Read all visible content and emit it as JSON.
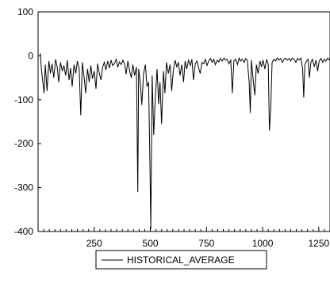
{
  "chart_data": {
    "type": "line",
    "title": "",
    "xlabel": "",
    "ylabel": "",
    "xlim": [
      0,
      1300
    ],
    "ylim": [
      -400,
      100
    ],
    "x_ticks": [
      250,
      500,
      750,
      1000,
      1250
    ],
    "y_ticks": [
      100,
      0,
      -100,
      -200,
      -300,
      -400
    ],
    "grid": false,
    "legend": "bottom-center",
    "series": [
      {
        "name": "HISTORICAL_AVERAGE",
        "color": "#000000",
        "points": [
          [
            10,
            6
          ],
          [
            15,
            -30
          ],
          [
            20,
            -55
          ],
          [
            27,
            -85
          ],
          [
            32,
            -20
          ],
          [
            40,
            -80
          ],
          [
            48,
            -12
          ],
          [
            55,
            -40
          ],
          [
            62,
            -18
          ],
          [
            70,
            -50
          ],
          [
            78,
            -8
          ],
          [
            85,
            -25
          ],
          [
            92,
            -60
          ],
          [
            100,
            -15
          ],
          [
            108,
            -35
          ],
          [
            115,
            -22
          ],
          [
            123,
            -45
          ],
          [
            130,
            -10
          ],
          [
            138,
            -55
          ],
          [
            145,
            -28
          ],
          [
            152,
            -70
          ],
          [
            160,
            -20
          ],
          [
            168,
            -40
          ],
          [
            175,
            -12
          ],
          [
            183,
            -30
          ],
          [
            190,
            -135
          ],
          [
            197,
            -15
          ],
          [
            205,
            -48
          ],
          [
            212,
            -85
          ],
          [
            220,
            -30
          ],
          [
            228,
            -60
          ],
          [
            235,
            -22
          ],
          [
            242,
            -52
          ],
          [
            250,
            -35
          ],
          [
            258,
            -75
          ],
          [
            265,
            -18
          ],
          [
            272,
            -38
          ],
          [
            280,
            -55
          ],
          [
            288,
            -25
          ],
          [
            295,
            -15
          ],
          [
            302,
            -32
          ],
          [
            310,
            -12
          ],
          [
            318,
            -28
          ],
          [
            325,
            -10
          ],
          [
            332,
            -22
          ],
          [
            340,
            -18
          ],
          [
            348,
            -8
          ],
          [
            355,
            -26
          ],
          [
            362,
            -14
          ],
          [
            370,
            -20
          ],
          [
            378,
            -10
          ],
          [
            385,
            -18
          ],
          [
            392,
            -42
          ],
          [
            400,
            -12
          ],
          [
            408,
            -35
          ],
          [
            415,
            -50
          ],
          [
            422,
            -20
          ],
          [
            430,
            -45
          ],
          [
            438,
            -25
          ],
          [
            444,
            -310
          ],
          [
            448,
            -30
          ],
          [
            455,
            -60
          ],
          [
            462,
            -112
          ],
          [
            470,
            -40
          ],
          [
            478,
            -20
          ],
          [
            485,
            -70
          ],
          [
            492,
            -60
          ],
          [
            498,
            -245
          ],
          [
            502,
            -395
          ],
          [
            508,
            -45
          ],
          [
            515,
            -180
          ],
          [
            522,
            -95
          ],
          [
            530,
            -30
          ],
          [
            537,
            -110
          ],
          [
            543,
            -60
          ],
          [
            550,
            -155
          ],
          [
            558,
            -35
          ],
          [
            565,
            -85
          ],
          [
            572,
            -15
          ],
          [
            580,
            -40
          ],
          [
            588,
            -20
          ],
          [
            595,
            -80
          ],
          [
            602,
            -35
          ],
          [
            610,
            -10
          ],
          [
            618,
            -25
          ],
          [
            625,
            -15
          ],
          [
            632,
            -45
          ],
          [
            640,
            -20
          ],
          [
            648,
            -60
          ],
          [
            655,
            -12
          ],
          [
            662,
            -30
          ],
          [
            670,
            -10
          ],
          [
            678,
            -22
          ],
          [
            685,
            -8
          ],
          [
            692,
            -55
          ],
          [
            700,
            -18
          ],
          [
            708,
            -12
          ],
          [
            715,
            -28
          ],
          [
            722,
            -40
          ],
          [
            730,
            -15
          ],
          [
            738,
            -18
          ],
          [
            745,
            -8
          ],
          [
            752,
            -22
          ],
          [
            760,
            -12
          ],
          [
            768,
            -6
          ],
          [
            775,
            -15
          ],
          [
            782,
            -8
          ],
          [
            790,
            -20
          ],
          [
            798,
            -10
          ],
          [
            805,
            -14
          ],
          [
            812,
            -6
          ],
          [
            820,
            -12
          ],
          [
            828,
            -5
          ],
          [
            835,
            -10
          ],
          [
            842,
            -8
          ],
          [
            850,
            -18
          ],
          [
            858,
            -10
          ],
          [
            865,
            -85
          ],
          [
            872,
            -12
          ],
          [
            880,
            -8
          ],
          [
            888,
            -20
          ],
          [
            895,
            -5
          ],
          [
            902,
            -12
          ],
          [
            910,
            -8
          ],
          [
            918,
            -15
          ],
          [
            925,
            -6
          ],
          [
            932,
            -10
          ],
          [
            940,
            -60
          ],
          [
            945,
            -130
          ],
          [
            950,
            -10
          ],
          [
            958,
            -55
          ],
          [
            965,
            -90
          ],
          [
            972,
            -20
          ],
          [
            980,
            -40
          ],
          [
            988,
            -12
          ],
          [
            995,
            -25
          ],
          [
            1002,
            -10
          ],
          [
            1010,
            -30
          ],
          [
            1018,
            -8
          ],
          [
            1025,
            -20
          ],
          [
            1030,
            -170
          ],
          [
            1036,
            -120
          ],
          [
            1042,
            -15
          ],
          [
            1050,
            -8
          ],
          [
            1058,
            -12
          ],
          [
            1065,
            -5
          ],
          [
            1072,
            -10
          ],
          [
            1080,
            -6
          ],
          [
            1088,
            -15
          ],
          [
            1095,
            -8
          ],
          [
            1102,
            -5
          ],
          [
            1110,
            -10
          ],
          [
            1118,
            -6
          ],
          [
            1125,
            -12
          ],
          [
            1132,
            -5
          ],
          [
            1140,
            -8
          ],
          [
            1148,
            -15
          ],
          [
            1155,
            -6
          ],
          [
            1162,
            -10
          ],
          [
            1170,
            -5
          ],
          [
            1178,
            -30
          ],
          [
            1183,
            -95
          ],
          [
            1188,
            -20
          ],
          [
            1195,
            -12
          ],
          [
            1202,
            -8
          ],
          [
            1208,
            -50
          ],
          [
            1215,
            -15
          ],
          [
            1222,
            -8
          ],
          [
            1230,
            -25
          ],
          [
            1238,
            -10
          ],
          [
            1245,
            -35
          ],
          [
            1252,
            -12
          ],
          [
            1260,
            -6
          ],
          [
            1268,
            -15
          ],
          [
            1275,
            -8
          ],
          [
            1282,
            -12
          ],
          [
            1290,
            -5
          ],
          [
            1298,
            -10
          ]
        ]
      }
    ]
  }
}
